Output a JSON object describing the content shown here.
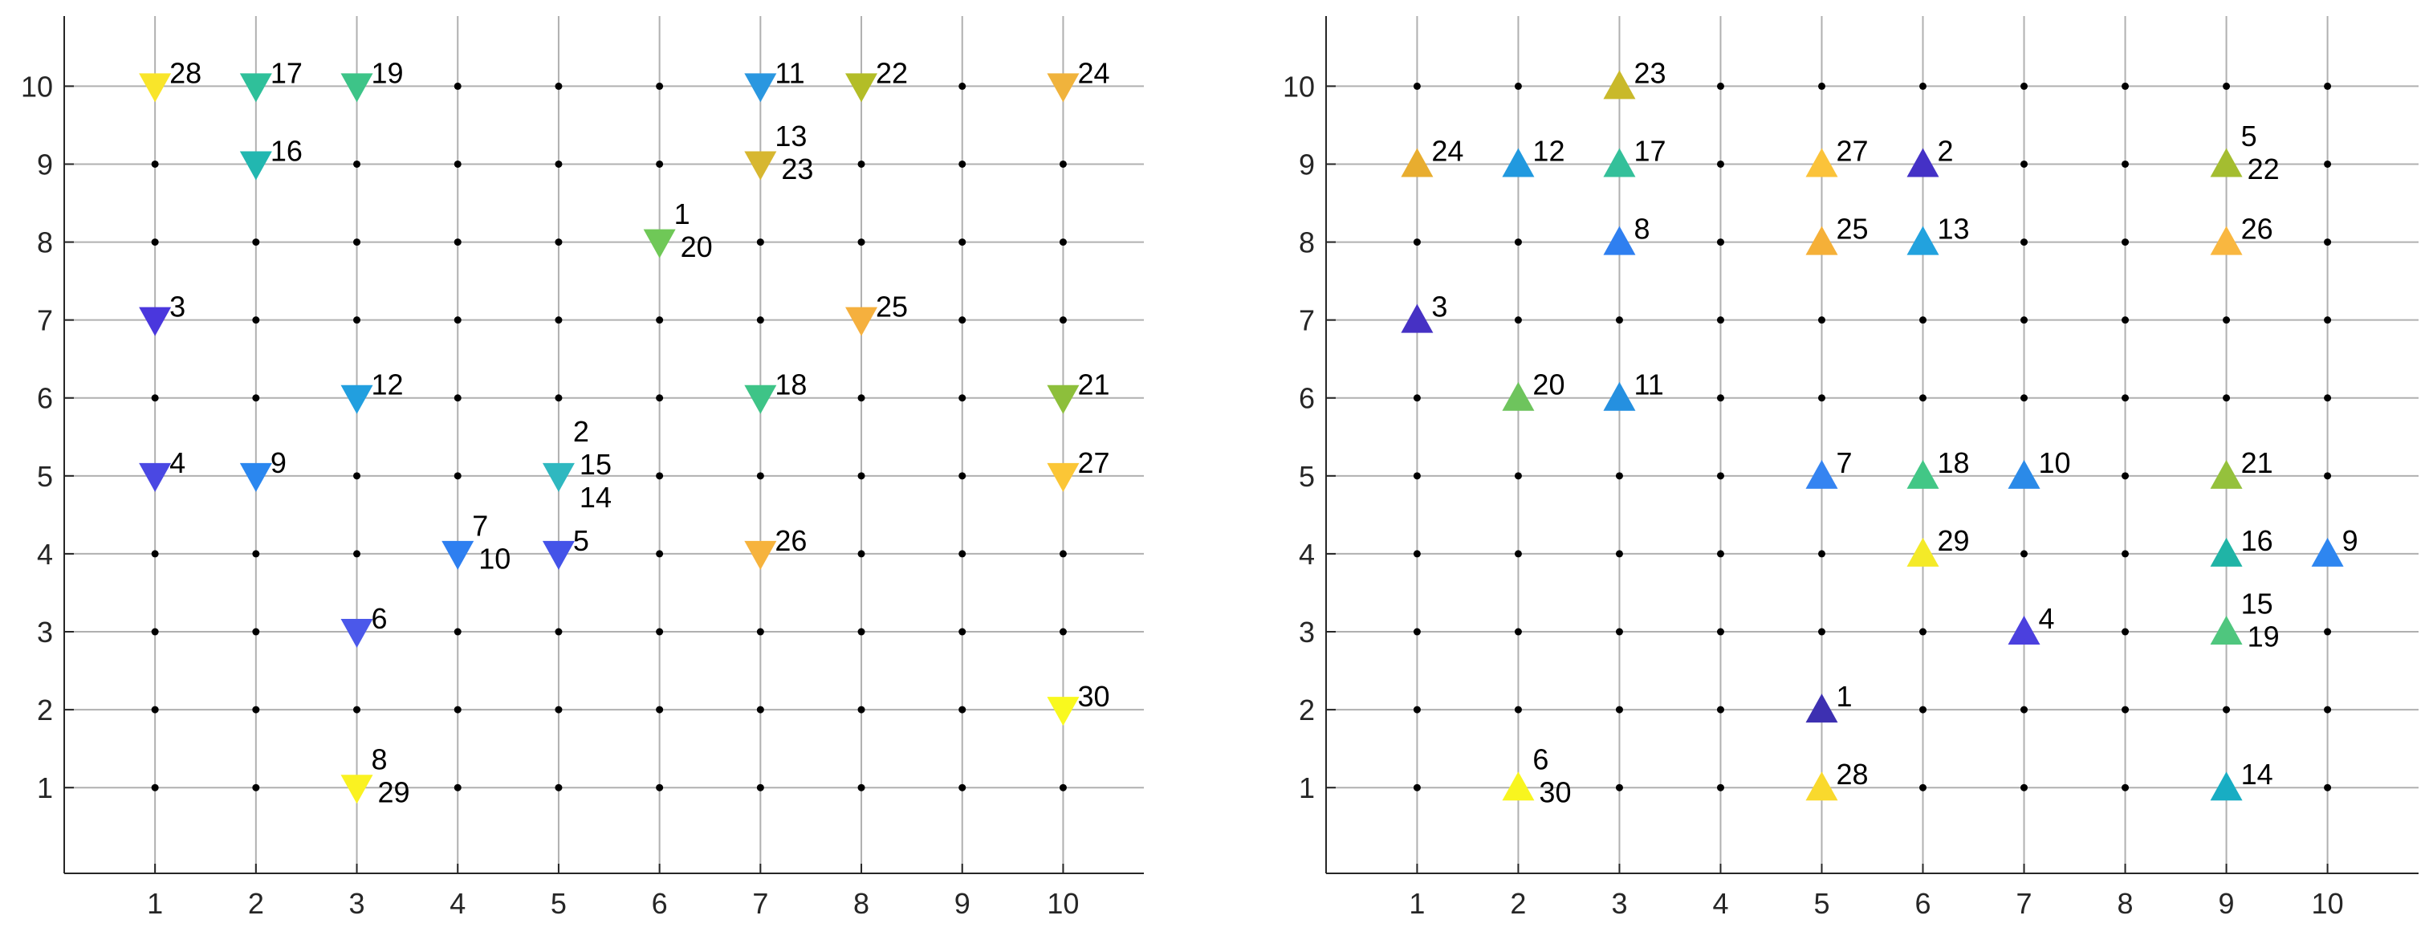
{
  "chart_data": [
    {
      "type": "scatter",
      "marker": "triangle-down",
      "grid": true,
      "grid_dots": true,
      "xlim": [
        0.1,
        10.8
      ],
      "ylim": [
        -0.1,
        10.9
      ],
      "xticks": [
        1,
        2,
        3,
        4,
        5,
        6,
        7,
        8,
        9,
        10
      ],
      "yticks": [
        1,
        2,
        3,
        4,
        5,
        6,
        7,
        8,
        9,
        10
      ],
      "colors": {
        "d28": "#f9e52a",
        "d17": "#2fc09a",
        "d19": "#3dc488",
        "d11": "#2a97e0",
        "d22": "#b3bd27",
        "d24": "#f0b33c",
        "d16": "#22b7b0",
        "d13": "#d7b730",
        "d1": "#6fc857",
        "d3": "#4a37dd",
        "d25": "#f5b03e",
        "d12": "#229fdf",
        "d18": "#3ec487",
        "d21": "#8dbf3b",
        "d4": "#4a48e3",
        "d9": "#2b87ef",
        "d2": "#2fb8c0",
        "d27": "#fbc636",
        "d7": "#2e7ff0",
        "d5": "#4453e8",
        "d26": "#f6b33d",
        "d6": "#4b58ea",
        "d30": "#f9f91e",
        "d8": "#faf221"
      },
      "points": [
        {
          "x": 1,
          "y": 10,
          "labels": [
            "28"
          ],
          "color_key": "d28"
        },
        {
          "x": 2,
          "y": 10,
          "labels": [
            "17"
          ],
          "color_key": "d17"
        },
        {
          "x": 3,
          "y": 10,
          "labels": [
            "19"
          ],
          "color_key": "d19"
        },
        {
          "x": 7,
          "y": 10,
          "labels": [
            "11"
          ],
          "color_key": "d11"
        },
        {
          "x": 8,
          "y": 10,
          "labels": [
            "22"
          ],
          "color_key": "d22"
        },
        {
          "x": 10,
          "y": 10,
          "labels": [
            "24"
          ],
          "color_key": "d24"
        },
        {
          "x": 2,
          "y": 9,
          "labels": [
            "16"
          ],
          "color_key": "d16"
        },
        {
          "x": 7,
          "y": 9,
          "labels": [
            "13",
            "23"
          ],
          "color_key": "d13"
        },
        {
          "x": 6,
          "y": 8,
          "labels": [
            "1",
            "20"
          ],
          "color_key": "d1"
        },
        {
          "x": 1,
          "y": 7,
          "labels": [
            "3"
          ],
          "color_key": "d3"
        },
        {
          "x": 8,
          "y": 7,
          "labels": [
            "25"
          ],
          "color_key": "d25"
        },
        {
          "x": 3,
          "y": 6,
          "labels": [
            "12"
          ],
          "color_key": "d12"
        },
        {
          "x": 7,
          "y": 6,
          "labels": [
            "18"
          ],
          "color_key": "d18"
        },
        {
          "x": 10,
          "y": 6,
          "labels": [
            "21"
          ],
          "color_key": "d21"
        },
        {
          "x": 1,
          "y": 5,
          "labels": [
            "4"
          ],
          "color_key": "d4"
        },
        {
          "x": 2,
          "y": 5,
          "labels": [
            "9"
          ],
          "color_key": "d9"
        },
        {
          "x": 5,
          "y": 5,
          "labels": [
            "2",
            "15",
            "14"
          ],
          "color_key": "d2"
        },
        {
          "x": 10,
          "y": 5,
          "labels": [
            "27"
          ],
          "color_key": "d27"
        },
        {
          "x": 4,
          "y": 4,
          "labels": [
            "7",
            "10"
          ],
          "color_key": "d7"
        },
        {
          "x": 5,
          "y": 4,
          "labels": [
            "5"
          ],
          "color_key": "d5"
        },
        {
          "x": 7,
          "y": 4,
          "labels": [
            "26"
          ],
          "color_key": "d26"
        },
        {
          "x": 3,
          "y": 3,
          "labels": [
            "6"
          ],
          "color_key": "d6"
        },
        {
          "x": 10,
          "y": 2,
          "labels": [
            "30"
          ],
          "color_key": "d30"
        },
        {
          "x": 3,
          "y": 1,
          "labels": [
            "8",
            "29"
          ],
          "color_key": "d8"
        }
      ]
    },
    {
      "type": "scatter",
      "marker": "triangle-up",
      "grid": true,
      "grid_dots": true,
      "xlim": [
        0.1,
        10.9
      ],
      "ylim": [
        -0.1,
        10.9
      ],
      "xticks": [
        1,
        2,
        3,
        4,
        5,
        6,
        7,
        8,
        9,
        10
      ],
      "yticks": [
        1,
        2,
        3,
        4,
        5,
        6,
        7,
        8,
        9,
        10
      ],
      "colors": {
        "u23": "#c9b92a",
        "u24": "#e8ad2f",
        "u12": "#2199df",
        "u17": "#34c09a",
        "u27": "#fbc33a",
        "u2": "#4431c6",
        "u5": "#a4bd30",
        "u8": "#2f7ff0",
        "u25": "#f5b038",
        "u13": "#22a2de",
        "u26": "#f9b740",
        "u3": "#4631c4",
        "u20": "#6ec45d",
        "u11": "#2590e0",
        "u7": "#3584f1",
        "u18": "#42c786",
        "u10": "#2b8ae8",
        "u21": "#95c13c",
        "u29": "#f4ea28",
        "u16": "#20b4a6",
        "u9": "#2e86f0",
        "u4": "#4b40de",
        "u15": "#4fc67e",
        "u1": "#3d30b1",
        "u6": "#f8f51f",
        "u28": "#f9d92d",
        "u14": "#18adc3"
      },
      "points": [
        {
          "x": 3,
          "y": 10,
          "labels": [
            "23"
          ],
          "color_key": "u23"
        },
        {
          "x": 1,
          "y": 9,
          "labels": [
            "24"
          ],
          "color_key": "u24"
        },
        {
          "x": 2,
          "y": 9,
          "labels": [
            "12"
          ],
          "color_key": "u12"
        },
        {
          "x": 3,
          "y": 9,
          "labels": [
            "17"
          ],
          "color_key": "u17"
        },
        {
          "x": 5,
          "y": 9,
          "labels": [
            "27"
          ],
          "color_key": "u27"
        },
        {
          "x": 6,
          "y": 9,
          "labels": [
            "2"
          ],
          "color_key": "u2"
        },
        {
          "x": 9,
          "y": 9,
          "labels": [
            "5",
            "22"
          ],
          "color_key": "u5"
        },
        {
          "x": 3,
          "y": 8,
          "labels": [
            "8"
          ],
          "color_key": "u8"
        },
        {
          "x": 5,
          "y": 8,
          "labels": [
            "25"
          ],
          "color_key": "u25"
        },
        {
          "x": 6,
          "y": 8,
          "labels": [
            "13"
          ],
          "color_key": "u13"
        },
        {
          "x": 9,
          "y": 8,
          "labels": [
            "26"
          ],
          "color_key": "u26"
        },
        {
          "x": 1,
          "y": 7,
          "labels": [
            "3"
          ],
          "color_key": "u3"
        },
        {
          "x": 2,
          "y": 6,
          "labels": [
            "20"
          ],
          "color_key": "u20"
        },
        {
          "x": 3,
          "y": 6,
          "labels": [
            "11"
          ],
          "color_key": "u11"
        },
        {
          "x": 5,
          "y": 5,
          "labels": [
            "7"
          ],
          "color_key": "u7"
        },
        {
          "x": 6,
          "y": 5,
          "labels": [
            "18"
          ],
          "color_key": "u18"
        },
        {
          "x": 7,
          "y": 5,
          "labels": [
            "10"
          ],
          "color_key": "u10"
        },
        {
          "x": 9,
          "y": 5,
          "labels": [
            "21"
          ],
          "color_key": "u21"
        },
        {
          "x": 6,
          "y": 4,
          "labels": [
            "29"
          ],
          "color_key": "u29"
        },
        {
          "x": 9,
          "y": 4,
          "labels": [
            "16"
          ],
          "color_key": "u16"
        },
        {
          "x": 10,
          "y": 4,
          "labels": [
            "9"
          ],
          "color_key": "u9"
        },
        {
          "x": 7,
          "y": 3,
          "labels": [
            "4"
          ],
          "color_key": "u4"
        },
        {
          "x": 9,
          "y": 3,
          "labels": [
            "15",
            "19"
          ],
          "color_key": "u15"
        },
        {
          "x": 5,
          "y": 2,
          "labels": [
            "1"
          ],
          "color_key": "u1"
        },
        {
          "x": 2,
          "y": 1,
          "labels": [
            "6",
            "30"
          ],
          "color_key": "u6"
        },
        {
          "x": 5,
          "y": 1,
          "labels": [
            "28"
          ],
          "color_key": "u28"
        },
        {
          "x": 9,
          "y": 1,
          "labels": [
            "14"
          ],
          "color_key": "u14"
        }
      ]
    }
  ]
}
